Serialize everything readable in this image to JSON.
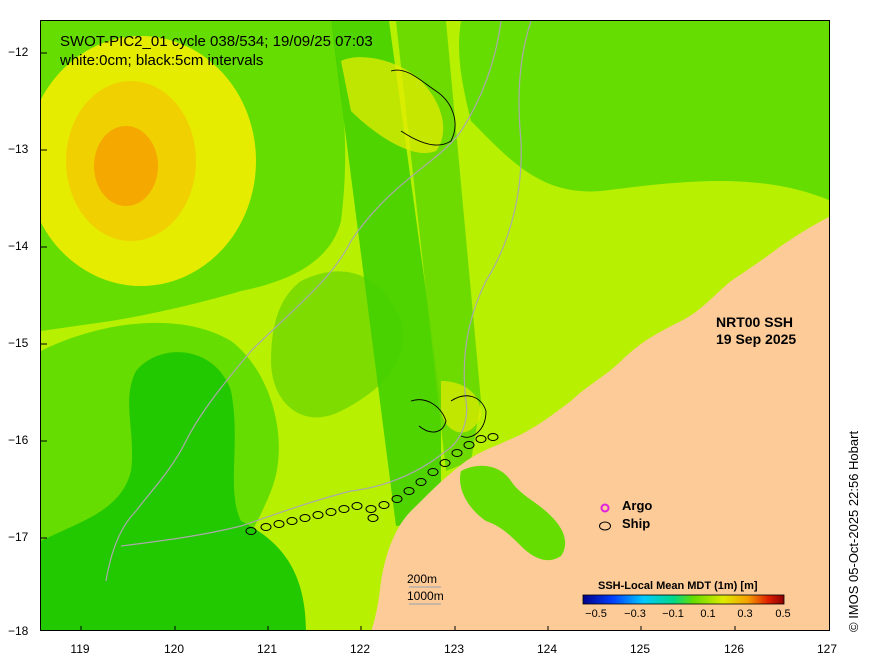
{
  "title": {
    "line1": "SWOT-PIC2_01 cycle 038/534; 19/09/25 07:03",
    "line2": "white:0cm; black:5cm intervals"
  },
  "product": {
    "line1": "NRT00 SSH",
    "line2": "19 Sep 2025"
  },
  "axes": {
    "y_ticks": [
      "−12",
      "−13",
      "−14",
      "−15",
      "−16",
      "−17",
      "−18"
    ],
    "x_ticks": [
      "119",
      "120",
      "121",
      "122",
      "123",
      "124",
      "125",
      "126",
      "127"
    ],
    "lon_range": [
      118.65,
      127.0
    ],
    "lat_range": [
      -18.0,
      -11.75
    ]
  },
  "legend": {
    "argo_label": "Argo",
    "ship_label": "Ship",
    "argo_color": "#e020e0",
    "ship_color": "#000000"
  },
  "depth_contours": {
    "shallow_label": "200m",
    "deep_label": "1000m"
  },
  "colorbar": {
    "title": "SSH-Local Mean MDT (1m) [m]",
    "ticks": [
      "−0.5",
      "−0.3",
      "−0.1",
      "0.1",
      "0.3",
      "0.5"
    ]
  },
  "credit": "© IMOS 05-Oct-2025 22:56 Hobart",
  "colors": {
    "land": "#fccb98",
    "ssh_background": "#b7f000",
    "ssh_green": "#33cc00",
    "ssh_yellow": "#e8e800",
    "ssh_orange": "#f4a800",
    "bathymetry": "#aaaaaa"
  }
}
